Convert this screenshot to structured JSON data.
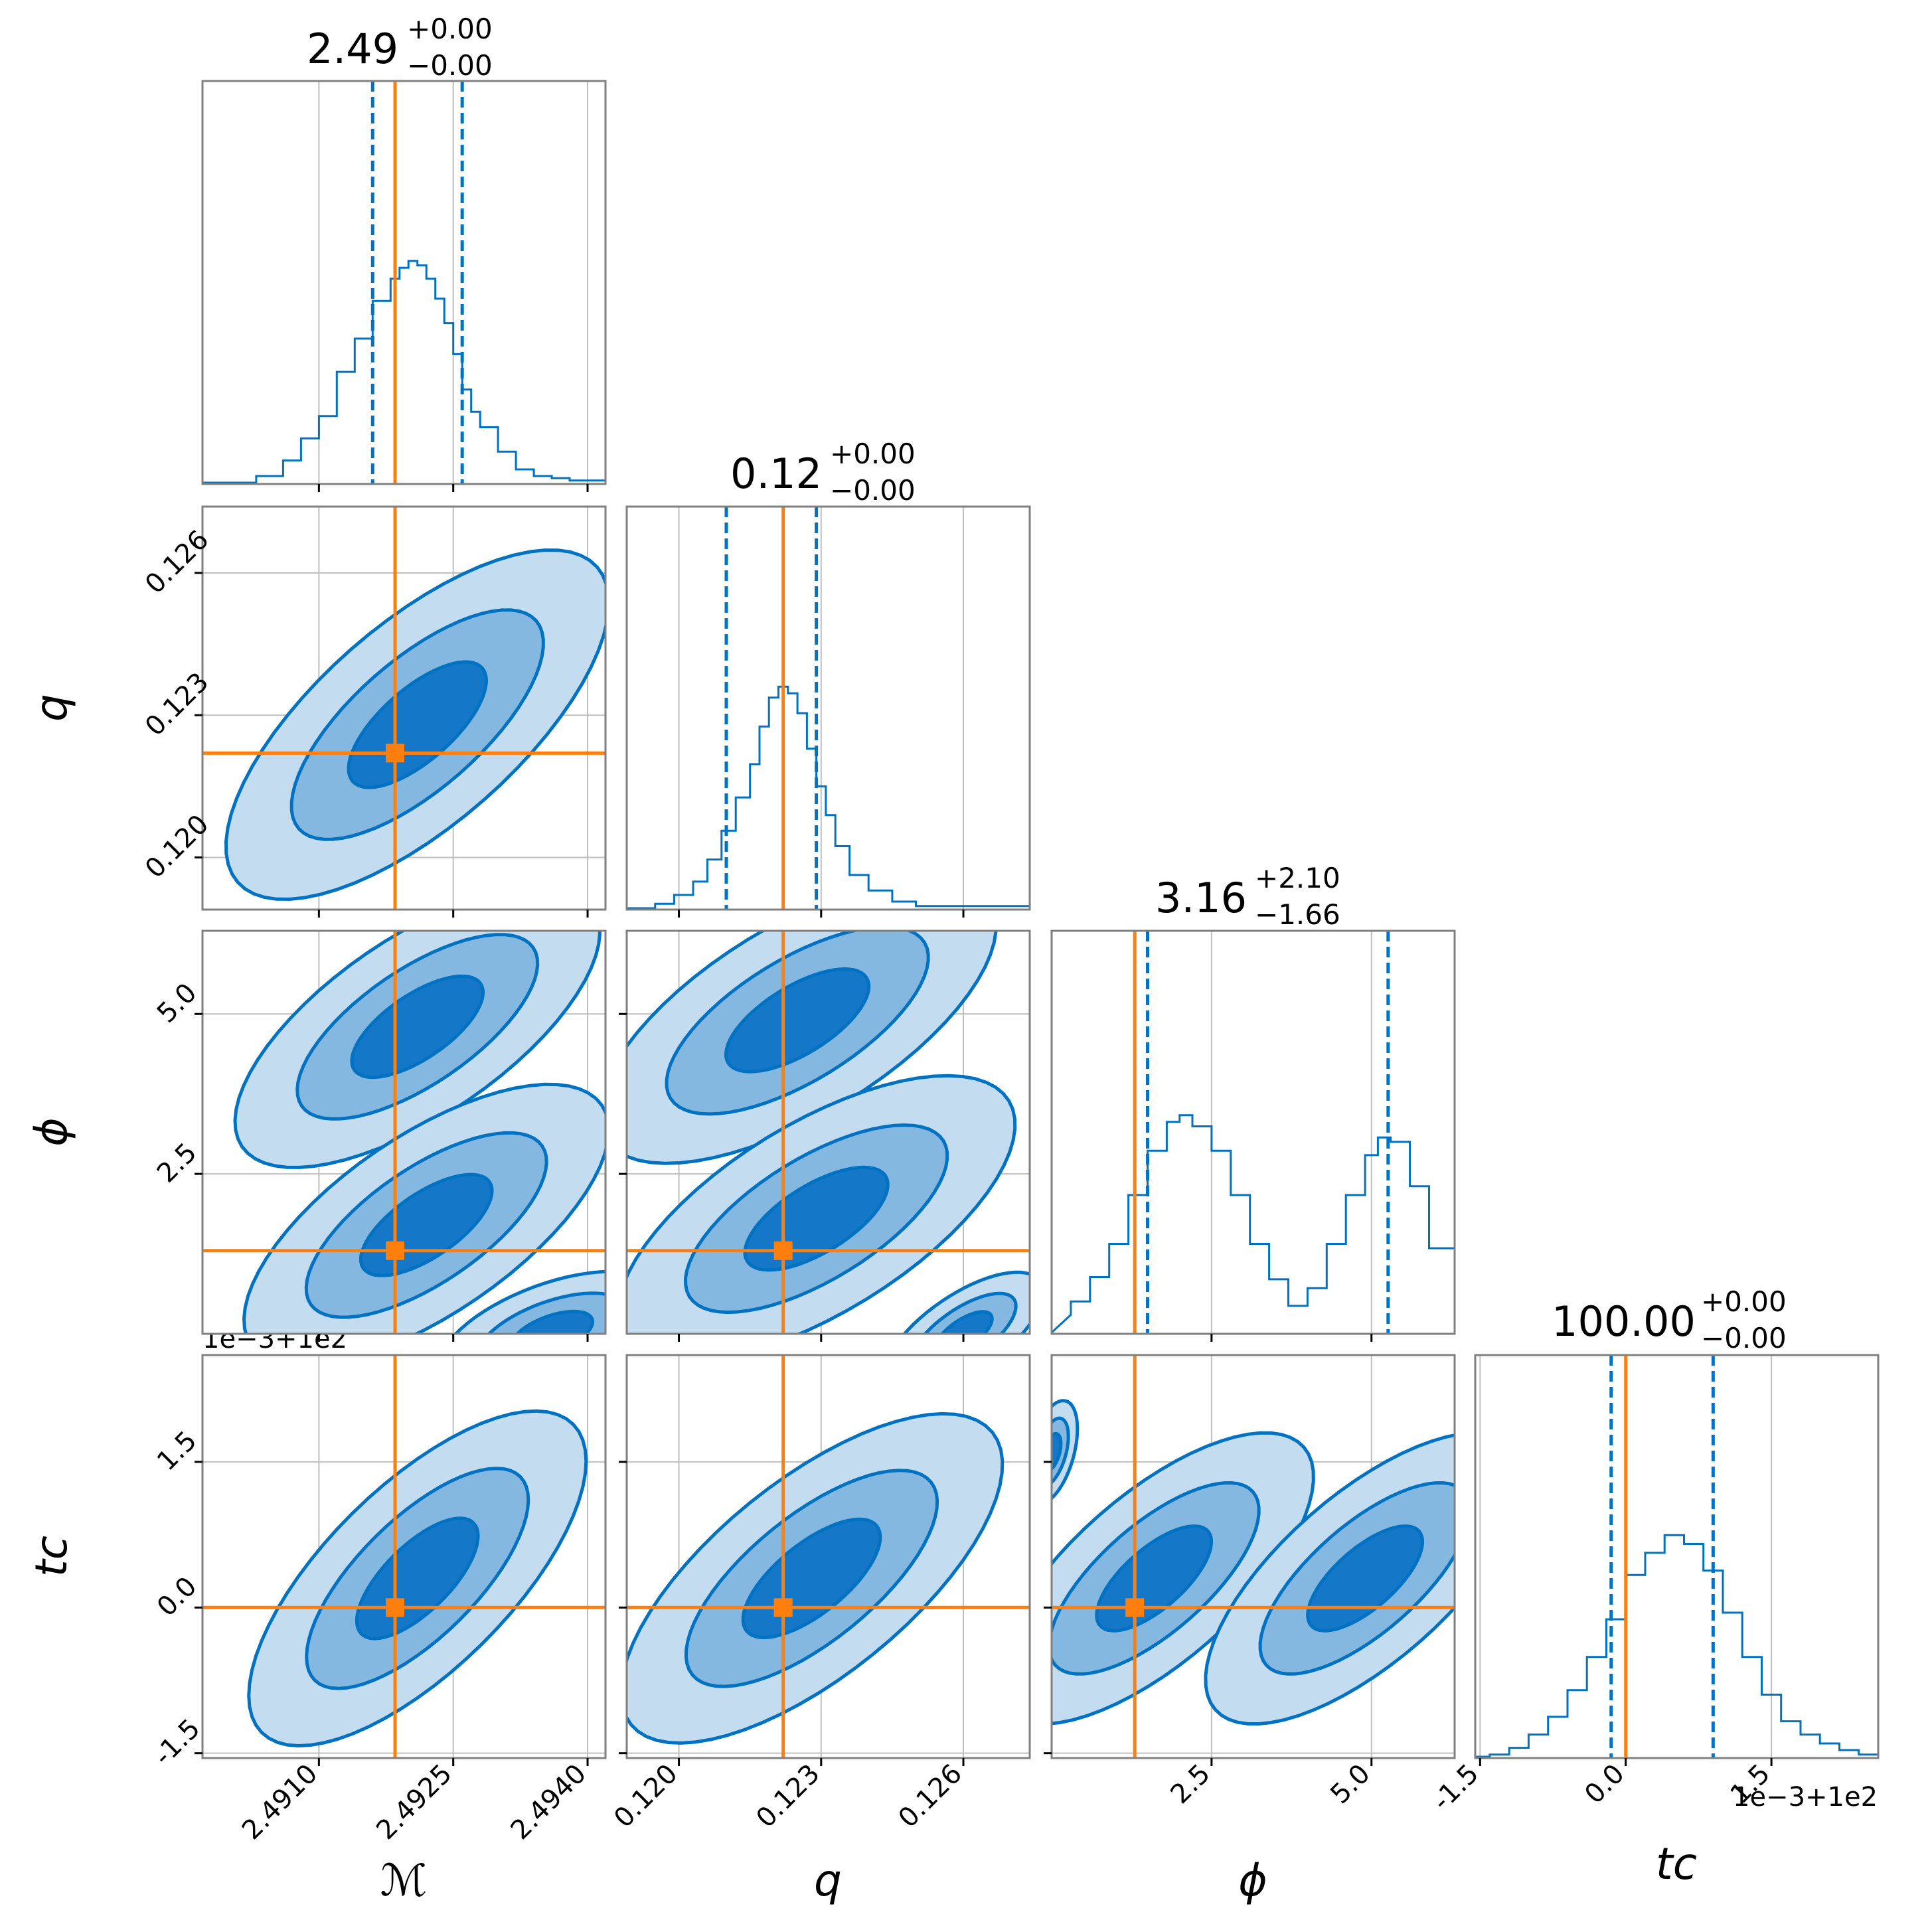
{
  "chart_data": {
    "type": "corner",
    "params": [
      "M",
      "q",
      "phi",
      "t_c"
    ],
    "axis_labels": [
      "ℳ",
      "q",
      "ϕ",
      "tᴄ"
    ],
    "ranges": [
      [
        2.4897,
        2.4942
      ],
      [
        0.1189,
        0.1274
      ],
      [
        0.0,
        6.3
      ],
      [
        -1.55,
        2.6
      ]
    ],
    "ticks": [
      {
        "values": [
          2.491,
          2.4925,
          2.494
        ],
        "labels": [
          "2.4910",
          "2.4925",
          "2.4940"
        ]
      },
      {
        "values": [
          0.12,
          0.123,
          0.126
        ],
        "labels": [
          "0.120",
          "0.123",
          "0.126"
        ]
      },
      {
        "values": [
          2.5,
          5.0
        ],
        "labels": [
          "2.5",
          "5.0"
        ]
      },
      {
        "values": [
          -1.5,
          0.0,
          1.5
        ],
        "labels": [
          "-1.5",
          "0.0",
          "1.5"
        ]
      }
    ],
    "offset_text": "1e−3+1e2",
    "truths": [
      2.49185,
      0.1222,
      1.3,
      0.0
    ],
    "titles": [
      {
        "median": "2.49",
        "plus": "+0.00",
        "minus": "−0.00"
      },
      {
        "median": "0.12",
        "plus": "+0.00",
        "minus": "−0.00"
      },
      {
        "median": "3.16",
        "plus": "+2.10",
        "minus": "−1.66"
      },
      {
        "median": "100.00",
        "plus": "+0.00",
        "minus": "−0.00"
      }
    ],
    "quantiles": [
      [
        2.4916,
        2.4926
      ],
      [
        0.121,
        0.1229
      ],
      [
        1.5,
        5.26
      ],
      [
        -0.15,
        0.9
      ]
    ],
    "marginals": [
      {
        "x": [
          2.4897,
          2.4903,
          2.4906,
          2.4908,
          2.491,
          2.4912,
          2.4914,
          2.4916,
          2.4918,
          2.4919,
          2.492,
          2.4921,
          2.4922,
          2.4923,
          2.4924,
          2.4925,
          2.4926,
          2.4927,
          2.4928,
          2.493,
          2.4932,
          2.4934,
          2.4936,
          2.4938,
          2.4942
        ],
        "y": [
          0.0,
          0.03,
          0.1,
          0.2,
          0.3,
          0.5,
          0.65,
          0.82,
          0.92,
          0.97,
          1.0,
          0.98,
          0.92,
          0.83,
          0.72,
          0.58,
          0.42,
          0.32,
          0.25,
          0.14,
          0.06,
          0.03,
          0.02,
          0.01,
          0.0
        ]
      },
      {
        "x": [
          0.1189,
          0.1195,
          0.1199,
          0.1203,
          0.1206,
          0.1209,
          0.1212,
          0.1215,
          0.1217,
          0.1219,
          0.1221,
          0.1223,
          0.1225,
          0.1227,
          0.1229,
          0.1231,
          0.1233,
          0.1236,
          0.124,
          0.1245,
          0.125,
          0.1274
        ],
        "y": [
          0.0,
          0.02,
          0.06,
          0.12,
          0.22,
          0.35,
          0.5,
          0.65,
          0.82,
          0.95,
          1.0,
          0.97,
          0.88,
          0.72,
          0.55,
          0.42,
          0.28,
          0.15,
          0.08,
          0.03,
          0.01,
          0.0
        ]
      },
      {
        "x": [
          0.0,
          0.3,
          0.6,
          0.9,
          1.2,
          1.5,
          1.8,
          2.0,
          2.2,
          2.5,
          2.8,
          3.1,
          3.4,
          3.7,
          4.0,
          4.3,
          4.6,
          4.9,
          5.1,
          5.3,
          5.6,
          5.9,
          6.3
        ],
        "y": [
          0.08,
          0.14,
          0.25,
          0.4,
          0.62,
          0.82,
          0.95,
          0.98,
          0.93,
          0.82,
          0.62,
          0.4,
          0.24,
          0.12,
          0.2,
          0.4,
          0.62,
          0.8,
          0.88,
          0.86,
          0.66,
          0.38,
          0.1
        ]
      },
      {
        "x": [
          -1.55,
          -1.4,
          -1.2,
          -1.0,
          -0.8,
          -0.6,
          -0.4,
          -0.2,
          0.0,
          0.2,
          0.4,
          0.6,
          0.8,
          1.0,
          1.2,
          1.4,
          1.6,
          1.8,
          2.0,
          2.2,
          2.4,
          2.6
        ],
        "y": [
          0.0,
          0.01,
          0.04,
          0.1,
          0.18,
          0.3,
          0.45,
          0.62,
          0.82,
          0.92,
          1.0,
          0.96,
          0.84,
          0.65,
          0.45,
          0.28,
          0.16,
          0.1,
          0.06,
          0.03,
          0.01,
          0.0
        ]
      }
    ]
  }
}
